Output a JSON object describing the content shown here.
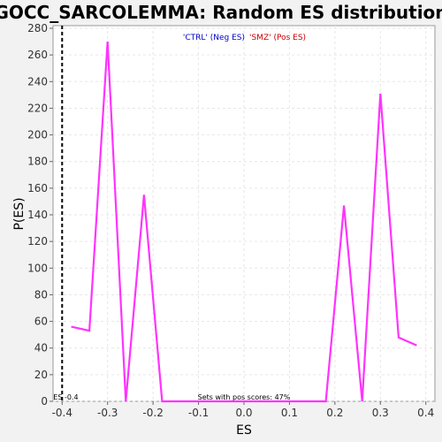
{
  "chart_data": {
    "type": "line",
    "title": "GOCC_SARCOLEMMA: Random ES distribution",
    "xlabel": "ES",
    "ylabel": "P(ES)",
    "xlim": [
      -0.42,
      0.42
    ],
    "ylim": [
      0,
      282
    ],
    "xticks": [
      -0.4,
      -0.3,
      -0.2,
      -0.1,
      0.0,
      0.1,
      0.2,
      0.3,
      0.4
    ],
    "xtick_labels": [
      "-0.4",
      "-0.3",
      "-0.2",
      "-0.1",
      "0.0",
      "0.1",
      "0.2",
      "0.3",
      "0.4"
    ],
    "yticks": [
      0,
      20,
      40,
      60,
      80,
      100,
      120,
      140,
      160,
      180,
      200,
      220,
      240,
      260,
      280
    ],
    "grid": true,
    "legend_position": "top-center",
    "series": [
      {
        "x": [
          -0.38,
          -0.34,
          -0.3,
          -0.26,
          -0.22,
          -0.18,
          -0.14,
          -0.1,
          -0.06,
          -0.02,
          0.02,
          0.06,
          0.1,
          0.14,
          0.18,
          0.22,
          0.26,
          0.3,
          0.34,
          0.38
        ],
        "values": [
          56,
          53,
          270,
          0,
          155,
          0,
          0,
          0,
          0,
          0,
          0,
          0,
          0,
          0,
          0,
          147,
          0,
          231,
          48,
          42
        ],
        "color": "#ff33ff"
      }
    ],
    "annotations": {
      "legend_ctrl": "'CTRL' (Neg ES)",
      "legend_smz": "'SMZ' (Pos ES)",
      "legend_ctrl_color": "#0000cc",
      "legend_smz_color": "#cc0000",
      "es_marker_x": -0.4,
      "es_marker_label": "ES -0.4",
      "sets_note": "Sets with pos scores: 47%"
    }
  }
}
